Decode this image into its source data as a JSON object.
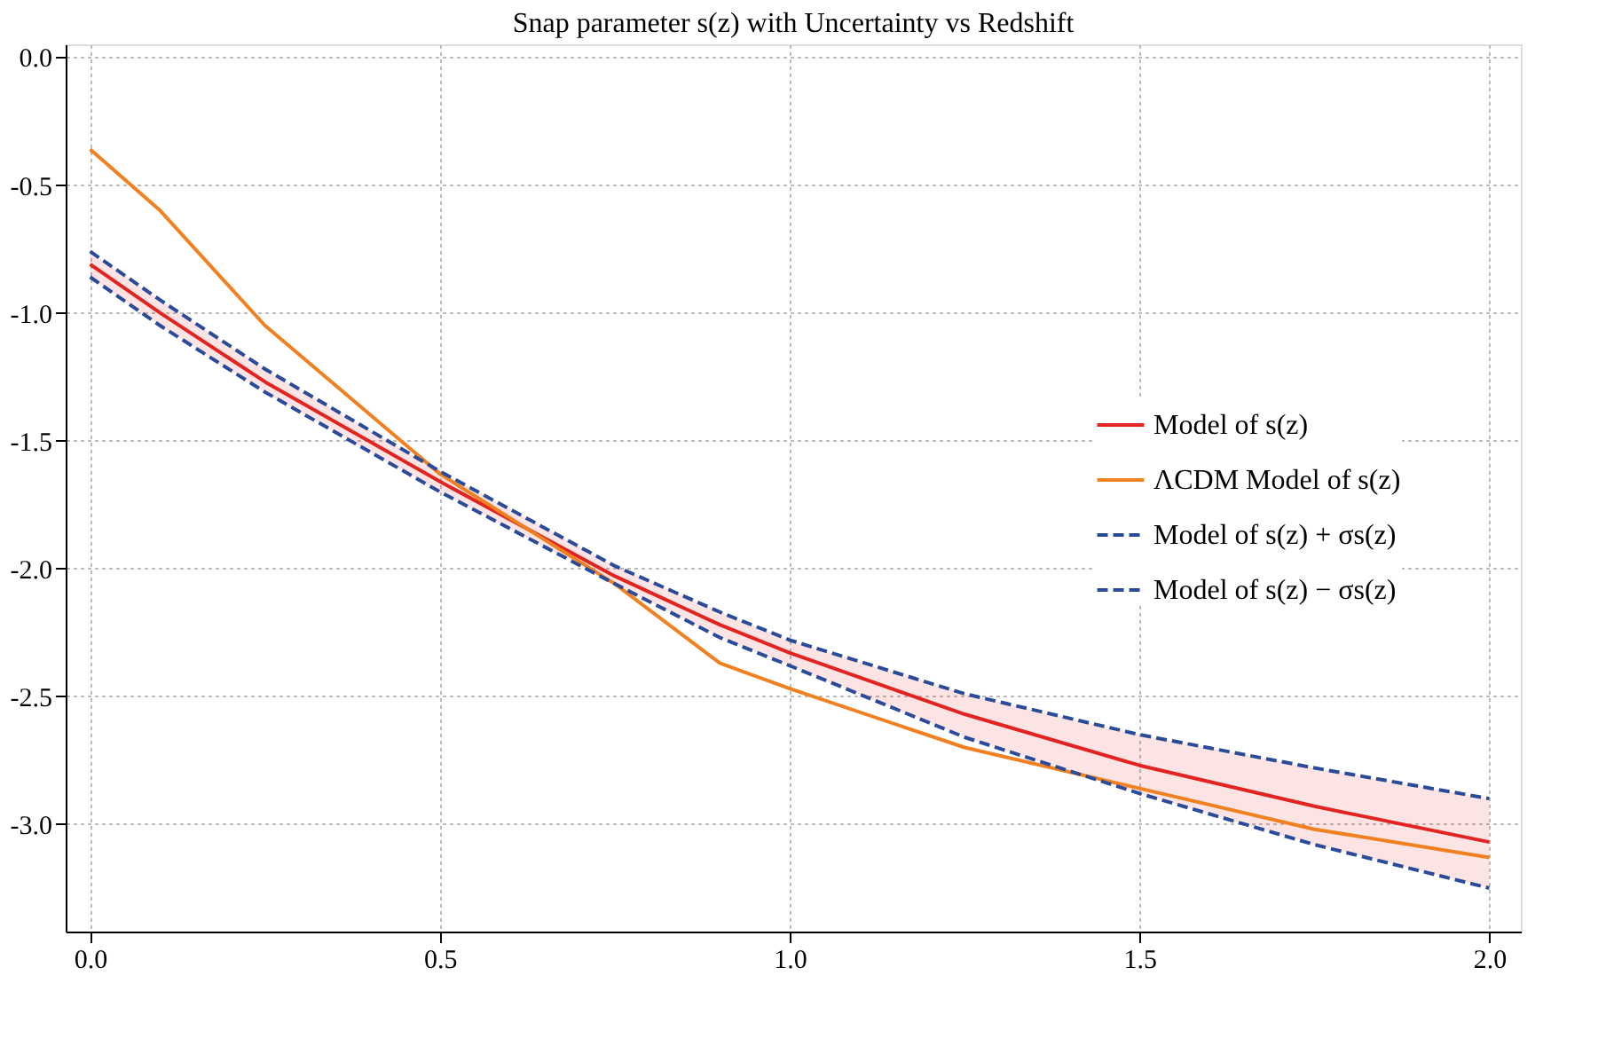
{
  "chart_data": {
    "type": "line",
    "title": "Snap parameter s(z) with Uncertainty vs Redshift",
    "x": [
      0,
      0.1,
      0.25,
      0.5,
      0.75,
      0.9,
      1.0,
      1.25,
      1.5,
      1.75,
      2.0
    ],
    "series": [
      {
        "name": "Model of s(z)",
        "color": "#e32320",
        "line_style": "solid",
        "values": [
          -0.81,
          -1.0,
          -1.27,
          -1.66,
          -2.03,
          -2.22,
          -2.33,
          -2.57,
          -2.77,
          -2.93,
          -3.07
        ],
        "lower": [
          -0.86,
          -1.05,
          -1.31,
          -1.7,
          -2.06,
          -2.27,
          -2.38,
          -2.66,
          -2.88,
          -3.08,
          -3.25
        ],
        "upper": [
          -0.76,
          -0.95,
          -1.22,
          -1.62,
          -1.99,
          -2.17,
          -2.28,
          -2.49,
          -2.65,
          -2.78,
          -2.9
        ]
      },
      {
        "name": "ΛCDM Model of s(z)",
        "color": "#f08020",
        "line_style": "solid",
        "values": [
          -0.36,
          -0.6,
          -1.05,
          -1.63,
          -2.06,
          -2.37,
          -2.47,
          -2.7,
          -2.86,
          -3.02,
          -3.13
        ]
      },
      {
        "name": "Model of s(z) + σs(z)",
        "color": "#2a4a9a",
        "line_style": "dashed",
        "values": [
          -0.76,
          -0.95,
          -1.22,
          -1.62,
          -1.99,
          -2.17,
          -2.28,
          -2.49,
          -2.65,
          -2.78,
          -2.9
        ]
      },
      {
        "name": "Model of s(z) − σs(z)",
        "color": "#2a4a9a",
        "line_style": "dashed",
        "values": [
          -0.86,
          -1.05,
          -1.31,
          -1.7,
          -2.06,
          -2.27,
          -2.38,
          -2.66,
          -2.88,
          -3.08,
          -3.25
        ]
      }
    ],
    "xlim": [
      -0.035,
      2.045
    ],
    "ylim": [
      -3.42,
      0.05
    ],
    "xticks": [
      {
        "value": 0,
        "label": "0.0"
      },
      0.5,
      {
        "value": 1,
        "label": "1.0"
      },
      1.5,
      {
        "value": 2,
        "label": "2.0"
      }
    ],
    "yticks": [
      {
        "value": 0,
        "label": "0.0"
      },
      -0.5,
      {
        "value": -1,
        "label": "-1.0"
      },
      -1.5,
      {
        "value": -2,
        "label": "-2.0"
      },
      -2.5,
      {
        "value": -3,
        "label": "-3.0"
      }
    ],
    "grid": true,
    "legend": "right"
  }
}
